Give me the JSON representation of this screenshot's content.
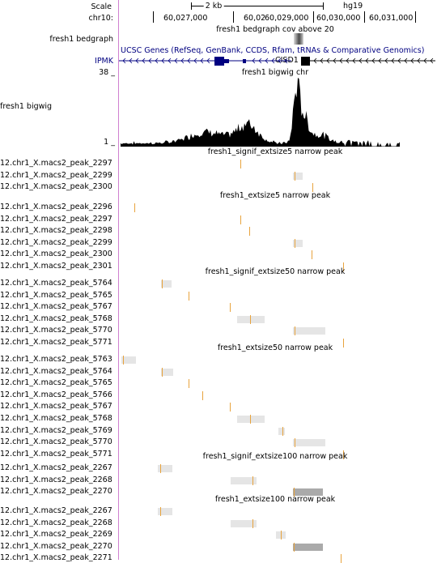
{
  "ruler": {
    "scale_label": "Scale",
    "scale_value": "2 kb",
    "assembly": "hg19",
    "chrom_label": "chr10:",
    "ticks": [
      "60,027,000",
      "60,028,000",
      "60,029,000",
      "60,030,000",
      "60,031,000"
    ]
  },
  "tracks": {
    "bedgraph": {
      "side_label": "fresh1 bedgraph",
      "title": "fresh1 bedgraph cov above 20"
    },
    "genes": {
      "title": "UCSC Genes (RefSeq, GenBank, CCDS, Rfam, tRNAs & Comparative Genomics)",
      "gene_left": "IPMK",
      "gene_right": "CISD1"
    },
    "bigwig": {
      "side_label": "fresh1 bigwig",
      "title": "fresh1 bigwig chr",
      "max_label": "38 _",
      "min_label": "1 _"
    }
  },
  "colors": {
    "peak": "#e8a33d",
    "peak_bg": "#e5e5e5",
    "peak_bg_dark": "#aaaaaa",
    "gene": "#000080",
    "guide": "#d080d0"
  },
  "peak_groups": [
    {
      "title": "fresh1_signif_extsize5 narrow peak",
      "rows": [
        {
          "label": "12.chr1_X.macs2_peak_2297",
          "peak": 297
        },
        {
          "label": "12.chr1_X.macs2_peak_2299",
          "peak": 364
        },
        {
          "label": "12.chr1_X.macs2_peak_2300",
          "peak": 386
        }
      ]
    },
    {
      "title": "fresh1_extsize5 narrow peak",
      "rows": [
        {
          "label": "12.chr1_X.macs2_peak_2296",
          "peak": 166
        },
        {
          "label": "12.chr1_X.macs2_peak_2297",
          "peak": 297
        },
        {
          "label": "12.chr1_X.macs2_peak_2298",
          "peak": 308
        },
        {
          "label": "12.chr1_X.macs2_peak_2299",
          "peak": 364
        },
        {
          "label": "12.chr1_X.macs2_peak_2300",
          "peak": 385
        },
        {
          "label": "12.chr1_X.macs2_peak_2301",
          "peak": 424
        }
      ]
    },
    {
      "title": "fresh1_signif_extsize50 narrow peak",
      "rows": [
        {
          "label": "12.chr1_X.macs2_peak_5764",
          "peak": 200
        },
        {
          "label": "12.chr1_X.macs2_peak_5765",
          "peak": 233
        },
        {
          "label": "12.chr1_X.macs2_peak_5767",
          "peak": 284
        },
        {
          "label": "12.chr1_X.macs2_peak_5768",
          "peak": 309
        },
        {
          "label": "12.chr1_X.macs2_peak_5770",
          "peak": 364
        },
        {
          "label": "12.chr1_X.macs2_peak_5771",
          "peak": 424
        }
      ]
    },
    {
      "title": "fresh1_extsize50 narrow peak",
      "rows": [
        {
          "label": "12.chr1_X.macs2_peak_5763",
          "peak": 152
        },
        {
          "label": "12.chr1_X.macs2_peak_5764",
          "peak": 200
        },
        {
          "label": "12.chr1_X.macs2_peak_5765",
          "peak": 233
        },
        {
          "label": "12.chr1_X.macs2_peak_5766",
          "peak": 250
        },
        {
          "label": "12.chr1_X.macs2_peak_5767",
          "peak": 284
        },
        {
          "label": "12.chr1_X.macs2_peak_5768",
          "peak": 309
        },
        {
          "label": "12.chr1_X.macs2_peak_5769",
          "peak": 349
        },
        {
          "label": "12.chr1_X.macs2_peak_5770",
          "peak": 364
        },
        {
          "label": "12.chr1_X.macs2_peak_5771",
          "peak": 424
        }
      ]
    },
    {
      "title": "fresh1_signif_extsize100 narrow peak",
      "rows": [
        {
          "label": "12.chr1_X.macs2_peak_2267",
          "peak": 198
        },
        {
          "label": "12.chr1_X.macs2_peak_2268",
          "peak": 312
        },
        {
          "label": "12.chr1_X.macs2_peak_2270",
          "peak": 363
        }
      ]
    },
    {
      "title": "fresh1_extsize100 narrow peak",
      "rows": [
        {
          "label": "12.chr1_X.macs2_peak_2267",
          "peak": 198
        },
        {
          "label": "12.chr1_X.macs2_peak_2268",
          "peak": 312
        },
        {
          "label": "12.chr1_X.macs2_peak_2269",
          "peak": 347
        },
        {
          "label": "12.chr1_X.macs2_peak_2270",
          "peak": 363
        },
        {
          "label": "12.chr1_X.macs2_peak_2271",
          "peak": 421
        }
      ]
    }
  ]
}
